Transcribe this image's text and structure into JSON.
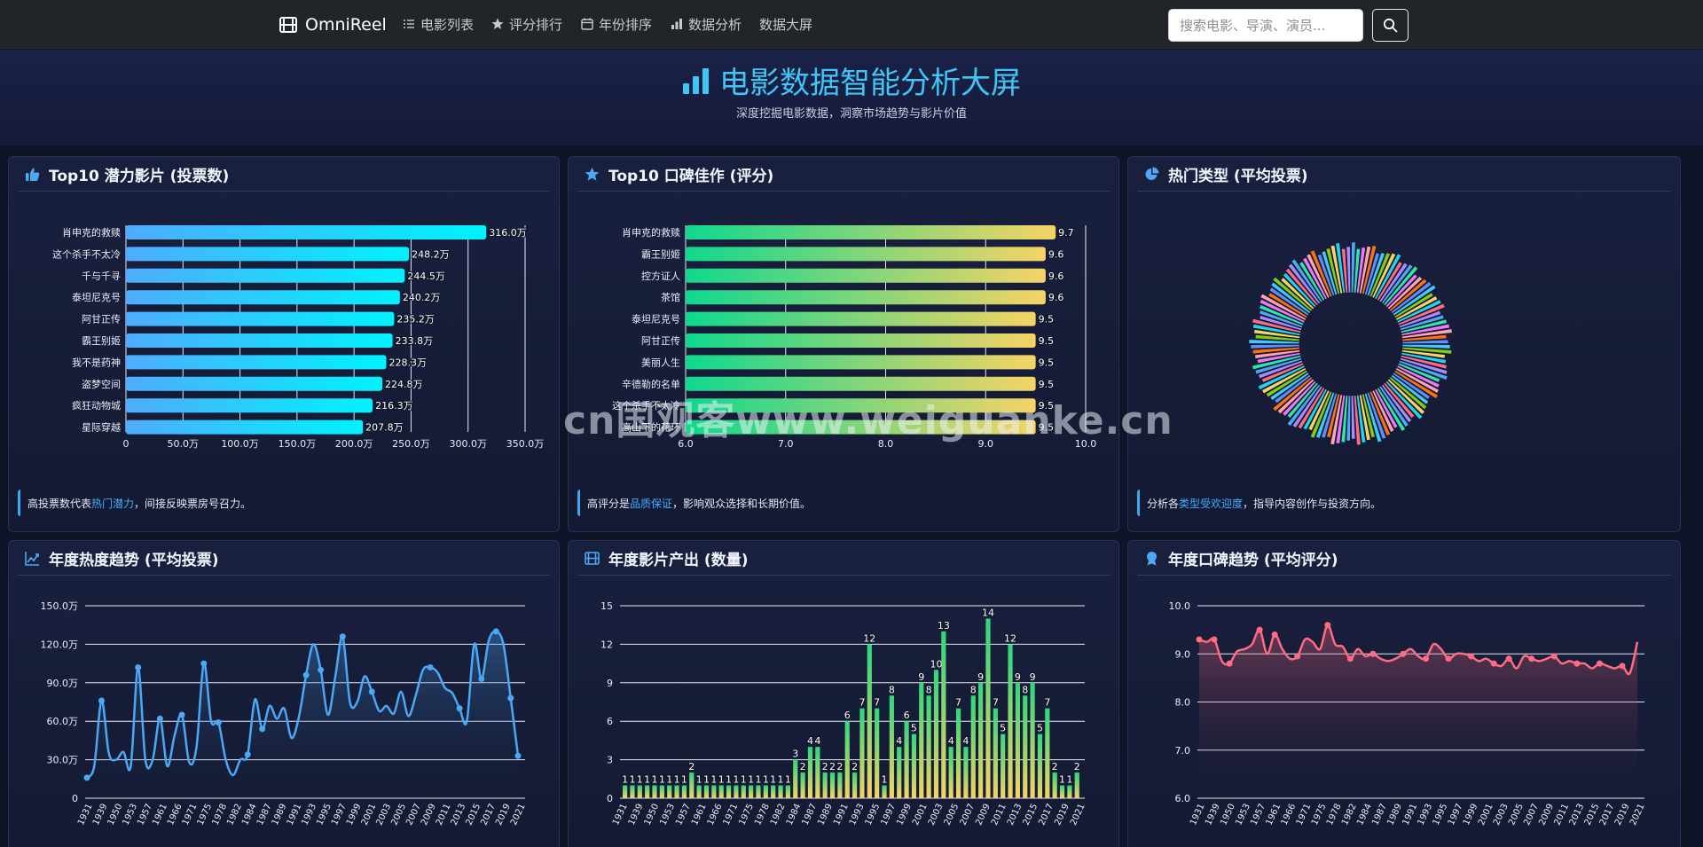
{
  "nav": {
    "brand": "OmniReel",
    "items": [
      "电影列表",
      "评分排行",
      "年份排序",
      "数据分析",
      "数据大屏"
    ],
    "search_placeholder": "搜索电影、导演、演员..."
  },
  "hero": {
    "title": "电影数据智能分析大屏",
    "subtitle": "深度挖掘电影数据，洞察市场趋势与影片价值"
  },
  "panels": {
    "votes": {
      "title": "Top10 潜力影片 (投票数)",
      "foot_pre": "高投票数代表",
      "foot_hl": "热门潜力",
      "foot_post": "，间接反映票房号召力。"
    },
    "rating": {
      "title": "Top10 口碑佳作 (评分)",
      "foot_pre": "高评分是",
      "foot_hl": "品质保证",
      "foot_post": "，影响观众选择和长期价值。"
    },
    "genre": {
      "title": "热门类型 (平均投票)",
      "foot_pre": "分析各",
      "foot_hl": "类型受欢迎度",
      "foot_post": "，指导内容创作与投资方向。"
    },
    "trend_votes": {
      "title": "年度热度趋势 (平均投票)"
    },
    "output": {
      "title": "年度影片产出 (数量)"
    },
    "trend_rating": {
      "title": "年度口碑趋势 (平均评分)"
    }
  },
  "watermark": "cn国观客www.weiguanke.cn",
  "colors": {
    "accent": "#3fc6f5",
    "bar_votes_start": "#4facfe",
    "bar_votes_end": "#00f2fe",
    "bar_rating_start": "#0fd88e",
    "bar_rating_end": "#f6d365",
    "line_votes": "#4aa8f5",
    "line_rating": "#ff6b81"
  },
  "chart_data": [
    {
      "id": "votes",
      "type": "bar",
      "orientation": "horizontal",
      "categories": [
        "肖申克的救赎",
        "这个杀手不太冷",
        "千与千寻",
        "泰坦尼克号",
        "阿甘正传",
        "霸王别姬",
        "我不是药神",
        "盗梦空间",
        "疯狂动物城",
        "星际穿越"
      ],
      "values": [
        316.0,
        248.2,
        244.5,
        240.2,
        235.2,
        233.8,
        228.3,
        224.8,
        216.3,
        207.8
      ],
      "value_labels": [
        "316.0万",
        "248.2万",
        "244.5万",
        "240.2万",
        "235.2万",
        "233.8万",
        "228.3万",
        "224.8万",
        "216.3万",
        "207.8万"
      ],
      "xlim": [
        0,
        350
      ],
      "xticks": [
        "0",
        "50.0万",
        "100.0万",
        "150.0万",
        "200.0万",
        "250.0万",
        "300.0万",
        "350.0万"
      ],
      "grid": true
    },
    {
      "id": "rating",
      "type": "bar",
      "orientation": "horizontal",
      "categories": [
        "肖申克的救赎",
        "霸王别姬",
        "控方证人",
        "茶馆",
        "泰坦尼克号",
        "阿甘正传",
        "美丽人生",
        "辛德勒的名单",
        "这个杀手不太冷",
        "高山下的花环"
      ],
      "values": [
        9.7,
        9.6,
        9.6,
        9.6,
        9.5,
        9.5,
        9.5,
        9.5,
        9.5,
        9.5
      ],
      "value_labels": [
        "9.7",
        "9.6",
        "9.6",
        "9.6",
        "9.5",
        "9.5",
        "9.5",
        "9.5",
        "9.5",
        "9.5"
      ],
      "xlim": [
        6,
        10
      ],
      "xticks": [
        "6.0",
        "7.0",
        "8.0",
        "9.0",
        "10.0"
      ],
      "grid": true
    },
    {
      "id": "genre",
      "type": "pie",
      "style": "donut",
      "slice_count": 120,
      "palette": [
        "#4aa8f5",
        "#5b8ff9",
        "#ff6b81",
        "#fda4af",
        "#f6d365",
        "#2ee6a8",
        "#40c9ff",
        "#a78bfa",
        "#f97316",
        "#22d3ee",
        "#e879f9",
        "#84cc16"
      ]
    },
    {
      "id": "trend_votes",
      "type": "area",
      "x_labels": [
        "1931",
        "1939",
        "1950",
        "1953",
        "1957",
        "1961",
        "1966",
        "1971",
        "1975",
        "1978",
        "1982",
        "1984",
        "1987",
        "1989",
        "1991",
        "1993",
        "1995",
        "1997",
        "1999",
        "2001",
        "2003",
        "2005",
        "2007",
        "2009",
        "2011",
        "2013",
        "2015",
        "2017",
        "2019",
        "2021"
      ],
      "values": [
        16,
        25,
        76,
        35,
        30,
        36,
        25,
        102,
        30,
        30,
        62,
        25,
        49,
        65,
        28,
        40,
        105,
        60,
        59,
        30,
        18,
        30,
        34,
        77,
        54,
        72,
        62,
        70,
        47,
        63,
        96,
        120,
        100,
        65,
        95,
        126,
        75,
        75,
        95,
        83,
        68,
        72,
        66,
        83,
        64,
        80,
        100,
        102,
        98,
        86,
        82,
        70,
        60,
        120,
        93,
        123,
        130,
        120,
        78,
        33
      ],
      "ylim": [
        0,
        150
      ],
      "yticks": [
        "0",
        "30.0万",
        "60.0万",
        "90.0万",
        "120.0万",
        "150.0万"
      ],
      "grid": true
    },
    {
      "id": "output",
      "type": "bar",
      "x_labels": [
        "1931",
        "1939",
        "1950",
        "1953",
        "1957",
        "1961",
        "1966",
        "1971",
        "1975",
        "1978",
        "1982",
        "1984",
        "1987",
        "1989",
        "1991",
        "1993",
        "1995",
        "1997",
        "1999",
        "2001",
        "2003",
        "2005",
        "2007",
        "2009",
        "2011",
        "2013",
        "2015",
        "2017",
        "2019",
        "2021"
      ],
      "values": [
        1,
        1,
        1,
        1,
        1,
        1,
        1,
        1,
        1,
        2,
        1,
        1,
        1,
        1,
        1,
        1,
        1,
        1,
        1,
        1,
        1,
        1,
        1,
        3,
        2,
        4,
        4,
        2,
        2,
        2,
        6,
        2,
        7,
        12,
        7,
        1,
        8,
        4,
        6,
        5,
        9,
        8,
        10,
        13,
        4,
        7,
        4,
        8,
        9,
        14,
        7,
        5,
        12,
        9,
        8,
        9,
        5,
        7,
        2,
        1,
        1,
        2
      ],
      "ylim": [
        0,
        15
      ],
      "yticks": [
        "0",
        "3",
        "6",
        "9",
        "12",
        "15"
      ],
      "grid": true
    },
    {
      "id": "trend_rating",
      "type": "area",
      "x_labels": [
        "1931",
        "1939",
        "1950",
        "1953",
        "1957",
        "1961",
        "1966",
        "1971",
        "1975",
        "1978",
        "1982",
        "1984",
        "1987",
        "1989",
        "1991",
        "1993",
        "1995",
        "1997",
        "1999",
        "2001",
        "2003",
        "2005",
        "2007",
        "2009",
        "2011",
        "2013",
        "2015",
        "2017",
        "2019",
        "2021"
      ],
      "values": [
        9.3,
        9.25,
        9.3,
        8.85,
        8.8,
        9.05,
        9.1,
        9.2,
        9.5,
        9.0,
        9.4,
        9.1,
        8.9,
        8.95,
        9.3,
        9.25,
        9.1,
        9.6,
        9.2,
        9.15,
        8.9,
        9.1,
        8.95,
        9.0,
        8.9,
        8.85,
        8.9,
        9.0,
        9.1,
        8.95,
        8.9,
        9.2,
        9.1,
        8.9,
        9.0,
        9.0,
        8.95,
        8.85,
        8.9,
        8.8,
        8.75,
        8.9,
        8.7,
        8.95,
        8.9,
        8.85,
        8.9,
        8.95,
        8.8,
        8.85,
        8.8,
        8.8,
        8.7,
        8.8,
        8.75,
        8.7,
        8.75,
        8.6,
        9.25
      ],
      "ylim": [
        6,
        10
      ],
      "yticks": [
        "6.0",
        "7.0",
        "8.0",
        "9.0",
        "10.0"
      ],
      "grid": true
    }
  ]
}
